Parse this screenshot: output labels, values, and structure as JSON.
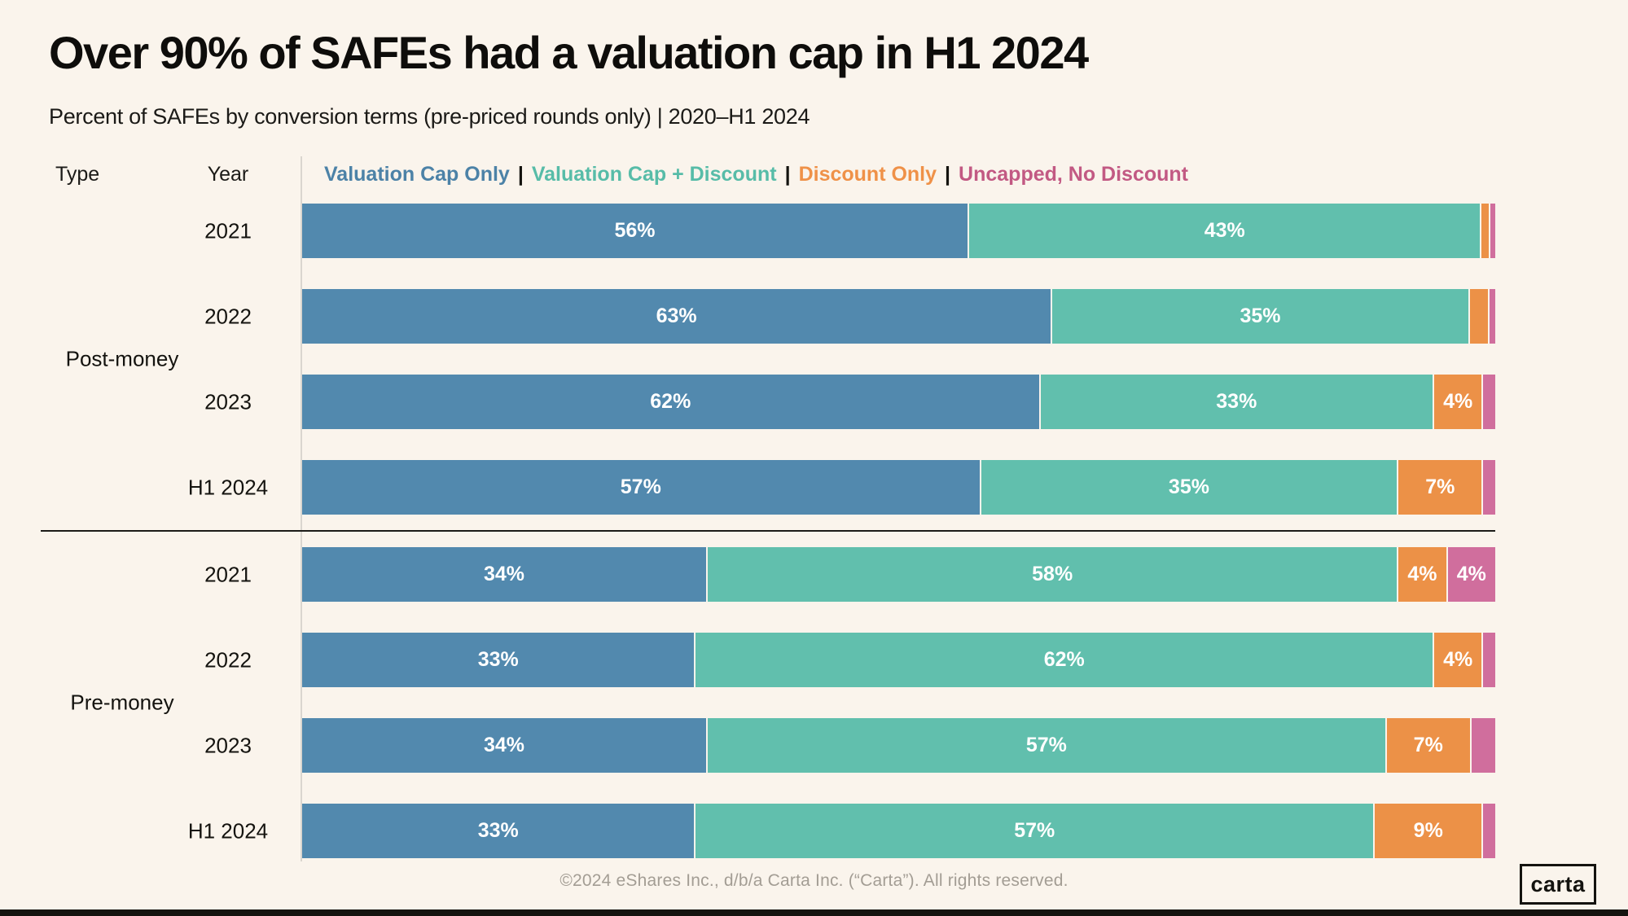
{
  "title": "Over 90% of SAFEs had a valuation cap in H1 2024",
  "subtitle": "Percent of SAFEs by conversion terms (pre-priced rounds only) | 2020–H1 2024",
  "header": {
    "type_label": "Type",
    "year_label": "Year"
  },
  "legend": {
    "separator": "|",
    "items": [
      {
        "label": "Valuation Cap Only",
        "color": "#4C82A7"
      },
      {
        "label": "Valuation Cap + Discount",
        "color": "#57BCA8"
      },
      {
        "label": "Discount Only",
        "color": "#EF9148"
      },
      {
        "label": "Uncapped, No Discount",
        "color": "#C25983"
      }
    ]
  },
  "chart_data": {
    "type": "bar",
    "orientation": "horizontal_stacked",
    "unit": "percent",
    "x_range": [
      0,
      100
    ],
    "grid": false,
    "legend_position": "top",
    "series_names": [
      "Valuation Cap Only",
      "Valuation Cap + Discount",
      "Discount Only",
      "Uncapped, No Discount"
    ],
    "series_colors": [
      "#5289AE",
      "#61BFAD",
      "#EC9147",
      "#D06E9D"
    ],
    "groups": [
      {
        "type": "Post-money",
        "rows": [
          {
            "year": "2021",
            "values": [
              56,
              43,
              0.6,
              0.4
            ],
            "labels": [
              "56%",
              "43%",
              "",
              ""
            ]
          },
          {
            "year": "2022",
            "values": [
              63,
              35,
              1.5,
              0.5
            ],
            "labels": [
              "63%",
              "35%",
              "",
              ""
            ]
          },
          {
            "year": "2023",
            "values": [
              62,
              33,
              4,
              1
            ],
            "labels": [
              "62%",
              "33%",
              "4%",
              ""
            ]
          },
          {
            "year": "H1 2024",
            "values": [
              57,
              35,
              7,
              1
            ],
            "labels": [
              "57%",
              "35%",
              "7%",
              ""
            ]
          }
        ]
      },
      {
        "type": "Pre-money",
        "rows": [
          {
            "year": "2021",
            "values": [
              34,
              58,
              4,
              4
            ],
            "labels": [
              "34%",
              "58%",
              "4%",
              "4%"
            ]
          },
          {
            "year": "2022",
            "values": [
              33,
              62,
              4,
              1
            ],
            "labels": [
              "33%",
              "62%",
              "4%",
              ""
            ]
          },
          {
            "year": "2023",
            "values": [
              34,
              57,
              7,
              2
            ],
            "labels": [
              "34%",
              "57%",
              "7%",
              ""
            ]
          },
          {
            "year": "H1 2024",
            "values": [
              33,
              57,
              9,
              1
            ],
            "labels": [
              "33%",
              "57%",
              "9%",
              ""
            ]
          }
        ]
      }
    ]
  },
  "footer": {
    "copyright": "©2024 eShares Inc., d/b/a Carta Inc. (“Carta”). All rights reserved.",
    "logo_text": "carta"
  }
}
